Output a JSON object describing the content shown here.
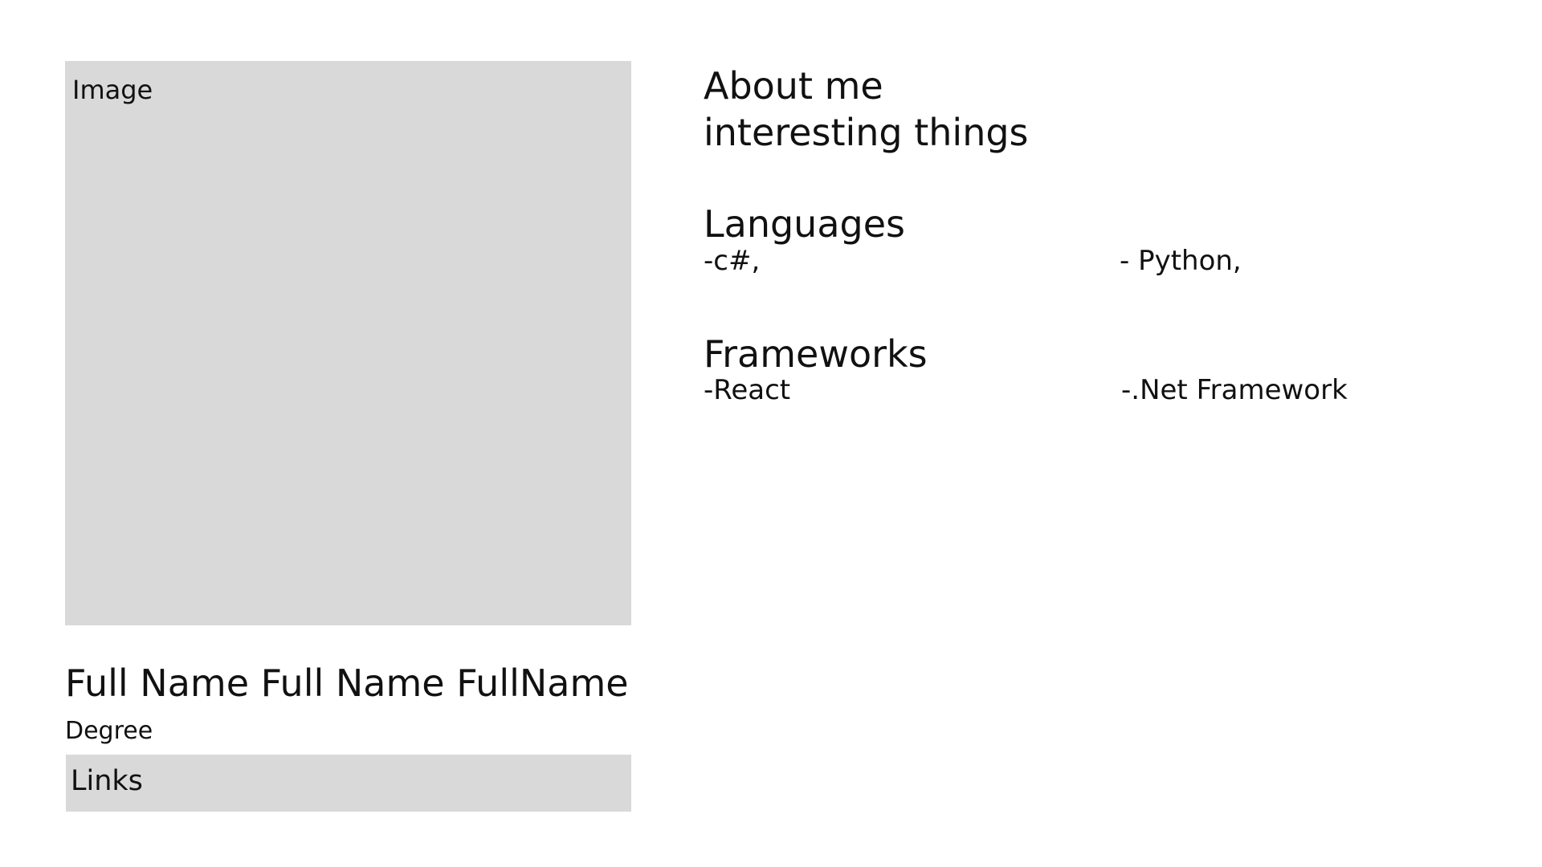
{
  "profile": {
    "image_label": "Image",
    "full_name": "Full Name Full Name FullName",
    "degree": "Degree",
    "links_label": "Links"
  },
  "about": {
    "title": "About me",
    "text": "interesting things"
  },
  "languages": {
    "title": "Languages",
    "items": [
      "-c#,",
      "- Python,"
    ]
  },
  "frameworks": {
    "title": "Frameworks",
    "items": [
      "-React",
      "-.Net Framework"
    ]
  }
}
